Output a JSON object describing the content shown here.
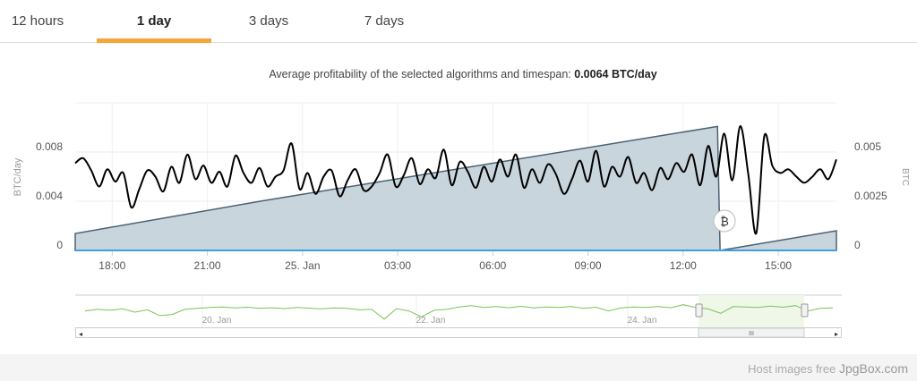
{
  "tabs": [
    {
      "label": "12 hours",
      "active": false
    },
    {
      "label": "1 day",
      "active": true
    },
    {
      "label": "3 days",
      "active": false
    },
    {
      "label": "7 days",
      "active": false
    }
  ],
  "summary": {
    "text": "Average profitability of the selected algorithms and timespan: ",
    "value": "0.0064 BTC/day"
  },
  "colors": {
    "accent": "#f7a53b",
    "profit_line": "#000000",
    "balance_fill": "#c9d5dc",
    "balance_line": "#4a6175",
    "baseline": "#3fa0e0",
    "navigator_line": "#7cc25a",
    "navigator_selection": "#eef7e8"
  },
  "chart_data": {
    "type": "line",
    "left_axis": {
      "label": "BTC/day",
      "ticks": [
        "0",
        "0.004",
        "0.008"
      ],
      "range": [
        0,
        0.012
      ]
    },
    "right_axis": {
      "label": "BTC",
      "ticks": [
        "0",
        "0.0025",
        "0.005"
      ],
      "range": [
        0,
        0.0075
      ]
    },
    "x_ticks": [
      "18:00",
      "21:00",
      "25. Jan",
      "03:00",
      "06:00",
      "09:00",
      "12:00",
      "15:00"
    ],
    "x_start": "24 Jan 16:50",
    "interval_minutes": 15,
    "grid": true,
    "series": [
      {
        "axis": "left",
        "kind": "line",
        "values": [
          0.0071,
          0.0075,
          0.0065,
          0.0052,
          0.0066,
          0.0056,
          0.0063,
          0.0035,
          0.005,
          0.0065,
          0.006,
          0.0048,
          0.0068,
          0.0055,
          0.0078,
          0.0058,
          0.0069,
          0.0055,
          0.0064,
          0.0052,
          0.0077,
          0.0063,
          0.0055,
          0.0067,
          0.0052,
          0.006,
          0.0065,
          0.0087,
          0.005,
          0.0063,
          0.0046,
          0.006,
          0.0065,
          0.0044,
          0.0057,
          0.0066,
          0.0049,
          0.0052,
          0.0063,
          0.0078,
          0.0052,
          0.0061,
          0.0075,
          0.0054,
          0.0066,
          0.0059,
          0.0082,
          0.0053,
          0.0072,
          0.0064,
          0.0051,
          0.0068,
          0.0056,
          0.0074,
          0.006,
          0.0078,
          0.0051,
          0.0066,
          0.0055,
          0.007,
          0.0062,
          0.0046,
          0.0058,
          0.0073,
          0.0056,
          0.0081,
          0.0052,
          0.0068,
          0.006,
          0.0076,
          0.0055,
          0.0063,
          0.0049,
          0.0067,
          0.0058,
          0.0071,
          0.0064,
          0.0078,
          0.0053,
          0.0085,
          0.006,
          0.0095,
          0.0057,
          0.0101,
          0.0062,
          0.0014,
          0.0093,
          0.0069,
          0.0063,
          0.0066,
          0.006,
          0.0055,
          0.006,
          0.0066,
          0.0058,
          0.0074
        ]
      },
      {
        "axis": "right",
        "kind": "area",
        "points": [
          [
            "24 Jan 16:50",
            0.00086
          ],
          [
            "24 Jan 22:40",
            0.0025
          ],
          [
            "25 Jan 13:05",
            0.0063
          ],
          [
            "25 Jan 13:10",
            0.0
          ],
          [
            "25 Jan 16:50",
            0.001
          ]
        ]
      }
    ]
  },
  "navigator": {
    "labels": [
      "20. Jan",
      "22. Jan",
      "24. Jan"
    ],
    "selection": [
      "24 Jan 16:50",
      "25 Jan 16:50"
    ],
    "scroll_grip": "III",
    "values": [
      0.55,
      0.62,
      0.58,
      0.64,
      0.5,
      0.6,
      0.35,
      0.4,
      0.62,
      0.66,
      0.7,
      0.72,
      0.68,
      0.71,
      0.66,
      0.69,
      0.65,
      0.7,
      0.67,
      0.64,
      0.68,
      0.66,
      0.6,
      0.62,
      0.2,
      0.65,
      0.55,
      0.3,
      0.58,
      0.62,
      0.72,
      0.78,
      0.7,
      0.74,
      0.69,
      0.75,
      0.68,
      0.72,
      0.7,
      0.74,
      0.66,
      0.71,
      0.55,
      0.68,
      0.72,
      0.7,
      0.74,
      0.69,
      0.82,
      0.7,
      0.64,
      0.45,
      0.74,
      0.72,
      0.7,
      0.76,
      0.71,
      0.78,
      0.55,
      0.66,
      0.68
    ]
  },
  "footer": {
    "text": "Host images free ",
    "brand": "JpgBox.com"
  }
}
